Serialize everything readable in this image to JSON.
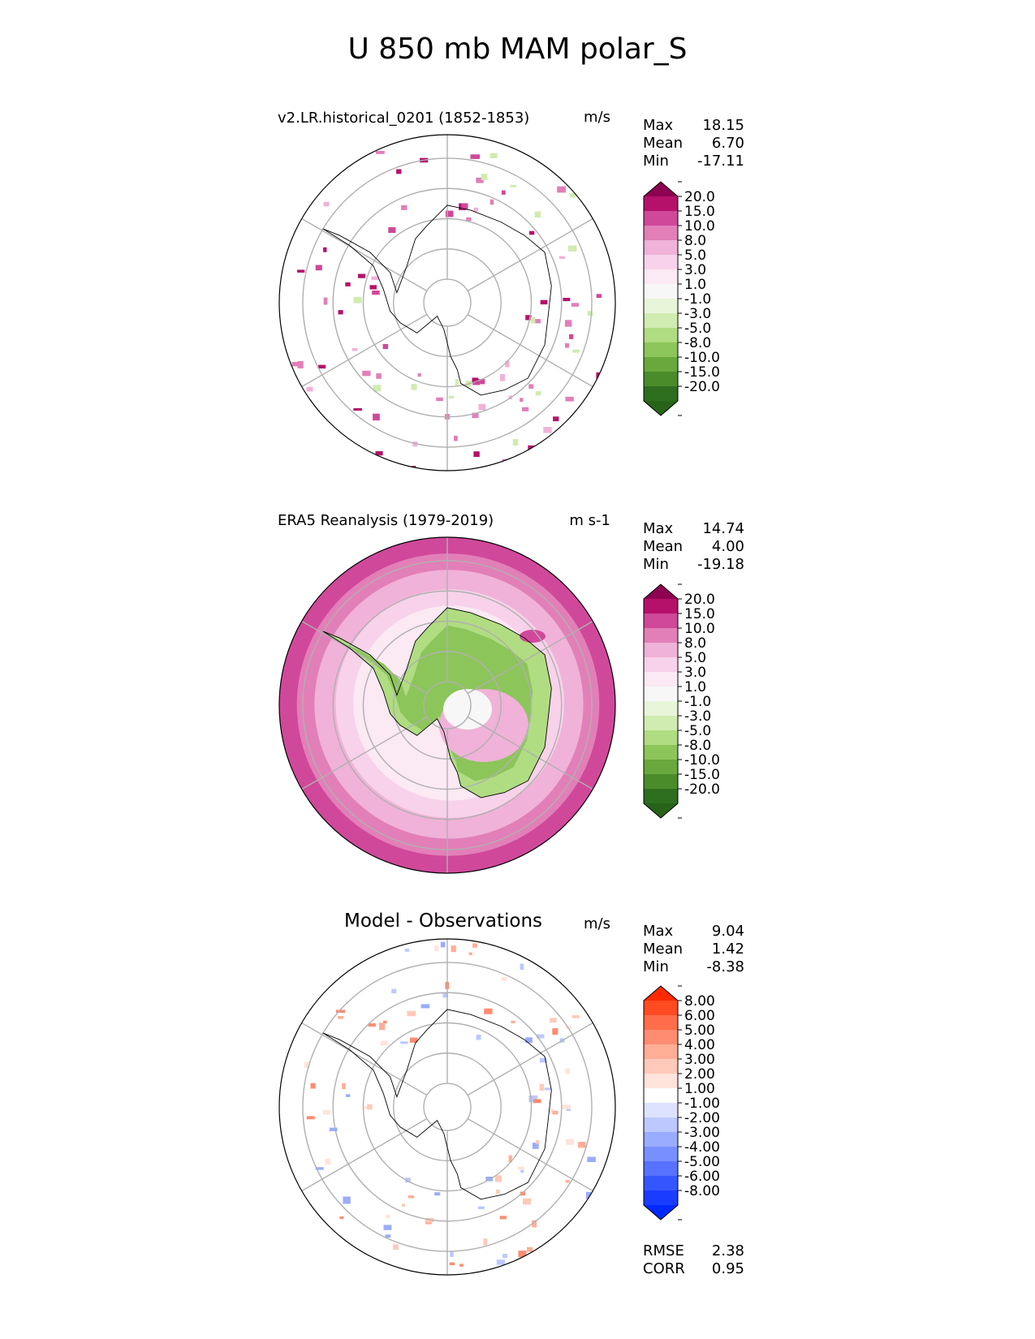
{
  "title": "U 850 mb MAM polar_S",
  "panels": [
    {
      "id": "test",
      "title": "v2.LR.historical_0201 (1852-1853)",
      "units": "m/s",
      "stats": [
        {
          "label": "Max",
          "value": "18.15"
        },
        {
          "label": "Mean",
          "value": "6.70"
        },
        {
          "label": "Min",
          "value": "-17.11"
        }
      ],
      "colorbar": {
        "levels": [
          "20.0",
          "15.0",
          "10.0",
          "8.0",
          "5.0",
          "3.0",
          "1.0",
          "-1.0",
          "-3.0",
          "-5.0",
          "-8.0",
          "-10.0",
          "-15.0",
          "-20.0"
        ],
        "colors": [
          "#8e0152",
          "#b5116b",
          "#d0489a",
          "#e27fb8",
          "#f0b2d8",
          "#f7d2ea",
          "#fbe9f3",
          "#f7f7f7",
          "#e9f5d9",
          "#d0ecb0",
          "#b0dc82",
          "#8cc55a",
          "#69a83c",
          "#4a8c2a",
          "#2d6e1f",
          "#276419"
        ]
      },
      "footer_stats": []
    },
    {
      "id": "reference",
      "title": "ERA5 Reanalysis (1979-2019)",
      "units": "m s-1",
      "stats": [
        {
          "label": "Max",
          "value": "14.74"
        },
        {
          "label": "Mean",
          "value": "4.00"
        },
        {
          "label": "Min",
          "value": "-19.18"
        }
      ],
      "colorbar": {
        "levels": [
          "20.0",
          "15.0",
          "10.0",
          "8.0",
          "5.0",
          "3.0",
          "1.0",
          "-1.0",
          "-3.0",
          "-5.0",
          "-8.0",
          "-10.0",
          "-15.0",
          "-20.0"
        ],
        "colors": [
          "#8e0152",
          "#b5116b",
          "#d0489a",
          "#e27fb8",
          "#f0b2d8",
          "#f7d2ea",
          "#fbe9f3",
          "#f7f7f7",
          "#e9f5d9",
          "#d0ecb0",
          "#b0dc82",
          "#8cc55a",
          "#69a83c",
          "#4a8c2a",
          "#2d6e1f",
          "#276419"
        ]
      },
      "footer_stats": []
    },
    {
      "id": "diff",
      "title": "Model - Observations",
      "units": "m/s",
      "stats": [
        {
          "label": "Max",
          "value": "9.04"
        },
        {
          "label": "Mean",
          "value": "1.42"
        },
        {
          "label": "Min",
          "value": "-8.38"
        }
      ],
      "colorbar": {
        "levels": [
          "8.00",
          "6.00",
          "5.00",
          "4.00",
          "3.00",
          "2.00",
          "1.00",
          "-1.00",
          "-2.00",
          "-3.00",
          "-4.00",
          "-5.00",
          "-6.00",
          "-8.00"
        ],
        "colors": [
          "#ff2a00",
          "#ff4a22",
          "#ff6d4a",
          "#ff8c70",
          "#ffae96",
          "#ffc9ba",
          "#ffe4dc",
          "#ffffff",
          "#dde3ff",
          "#bcc8ff",
          "#9aacff",
          "#7890ff",
          "#5672ff",
          "#3456ff",
          "#1a3cff",
          "#0029ff"
        ]
      },
      "footer_stats": [
        {
          "label": "RMSE",
          "value": "2.38"
        },
        {
          "label": "CORR",
          "value": "0.95"
        }
      ]
    }
  ]
}
